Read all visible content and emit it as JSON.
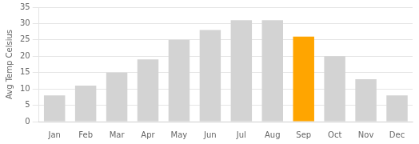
{
  "chart_data": {
    "type": "bar",
    "categories": [
      "Jan",
      "Feb",
      "Mar",
      "Apr",
      "May",
      "Jun",
      "Jul",
      "Aug",
      "Sep",
      "Oct",
      "Nov",
      "Dec"
    ],
    "values": [
      8,
      11,
      15,
      19,
      25,
      28,
      31,
      31,
      26,
      20,
      13,
      8
    ],
    "colors": [
      "#d3d3d3",
      "#d3d3d3",
      "#d3d3d3",
      "#d3d3d3",
      "#d3d3d3",
      "#d3d3d3",
      "#d3d3d3",
      "#d3d3d3",
      "#ffa500",
      "#d3d3d3",
      "#d3d3d3",
      "#d3d3d3"
    ],
    "y_label": "Avg Temp Celsius",
    "ylim": [
      0,
      35
    ],
    "yticks": [
      0,
      5,
      10,
      15,
      20,
      25,
      30,
      35
    ],
    "grid": true
  }
}
